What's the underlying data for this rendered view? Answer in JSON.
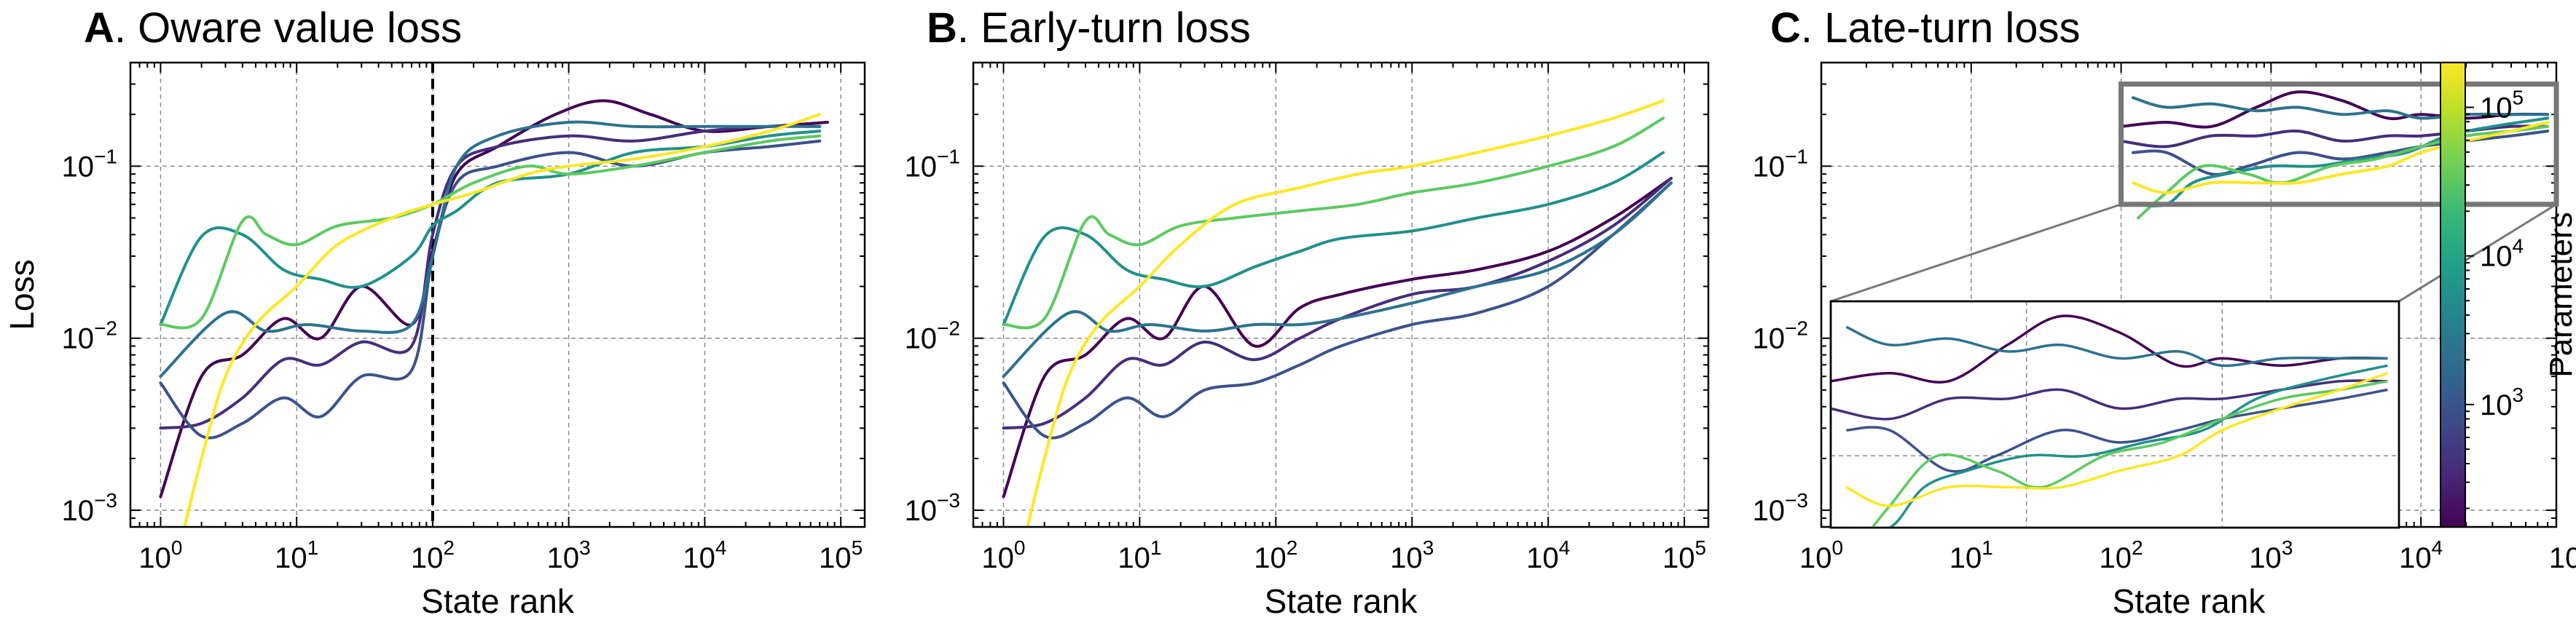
{
  "figure": {
    "colorbar": {
      "label": "Parameters",
      "colormap": [
        "#440154",
        "#482878",
        "#3e4989",
        "#31688e",
        "#26828e",
        "#1f9e89",
        "#35b779",
        "#6ece58",
        "#b5de2b",
        "#fde725"
      ],
      "range": [
        150,
        200000
      ],
      "ticks": [
        {
          "value": 1000,
          "base": "10",
          "exp": "3"
        },
        {
          "value": 10000,
          "base": "10",
          "exp": "4"
        },
        {
          "value": 100000,
          "base": "10",
          "exp": "5"
        }
      ]
    }
  },
  "chart_data": [
    {
      "type": "line",
      "panel_letter": "A",
      "title_rest": ". Oware value loss",
      "xlabel": "State rank",
      "ylabel": "Loss",
      "xscale": "log",
      "yscale": "log",
      "xlim": [
        0.6,
        150000
      ],
      "ylim": [
        0.0008,
        0.4
      ],
      "xticks": [
        {
          "base": "10",
          "exp": "0"
        },
        {
          "base": "10",
          "exp": "1"
        },
        {
          "base": "10",
          "exp": "2"
        },
        {
          "base": "10",
          "exp": "3"
        },
        {
          "base": "10",
          "exp": "4"
        },
        {
          "base": "10",
          "exp": "5"
        }
      ],
      "yticks": [
        {
          "base": "10",
          "exp": "−3"
        },
        {
          "base": "10",
          "exp": "−2"
        },
        {
          "base": "10",
          "exp": "−1"
        }
      ],
      "grid": true,
      "vline": {
        "x": 100,
        "style": "dashed"
      },
      "series": [
        {
          "color": "#440154",
          "x": [
            1,
            2,
            4,
            8,
            15,
            30,
            70,
            100,
            150,
            300,
            800,
            1800,
            4000,
            10000,
            30000,
            80000
          ],
          "y": [
            0.0012,
            0.006,
            0.008,
            0.013,
            0.01,
            0.02,
            0.012,
            0.032,
            0.09,
            0.13,
            0.2,
            0.24,
            0.2,
            0.16,
            0.17,
            0.18
          ]
        },
        {
          "color": "#472d7b",
          "x": [
            1,
            2,
            4,
            8,
            15,
            30,
            70,
            100,
            150,
            300,
            1000,
            3000,
            10000,
            30000,
            70000
          ],
          "y": [
            0.003,
            0.0032,
            0.0045,
            0.0075,
            0.007,
            0.0095,
            0.009,
            0.04,
            0.1,
            0.13,
            0.15,
            0.14,
            0.16,
            0.17,
            0.17
          ]
        },
        {
          "color": "#3b528b",
          "x": [
            1,
            2,
            4,
            8,
            15,
            30,
            70,
            100,
            150,
            300,
            1000,
            3000,
            10000,
            30000,
            70000
          ],
          "y": [
            0.0055,
            0.0027,
            0.0032,
            0.0045,
            0.0035,
            0.006,
            0.0065,
            0.03,
            0.08,
            0.1,
            0.12,
            0.1,
            0.12,
            0.13,
            0.14
          ]
        },
        {
          "color": "#2c728e",
          "x": [
            1,
            3,
            6,
            12,
            30,
            70,
            100,
            150,
            300,
            1000,
            3000,
            10000,
            30000,
            70000
          ],
          "y": [
            0.006,
            0.014,
            0.011,
            0.012,
            0.011,
            0.012,
            0.03,
            0.1,
            0.15,
            0.18,
            0.17,
            0.17,
            0.17,
            0.17
          ]
        },
        {
          "color": "#21918c",
          "x": [
            1,
            2,
            4,
            8,
            15,
            30,
            70,
            100,
            150,
            300,
            1000,
            3000,
            10000,
            30000,
            70000
          ],
          "y": [
            0.012,
            0.039,
            0.04,
            0.025,
            0.022,
            0.02,
            0.03,
            0.045,
            0.055,
            0.08,
            0.09,
            0.12,
            0.13,
            0.15,
            0.16
          ]
        },
        {
          "color": "#5ec962",
          "x": [
            1,
            2,
            4,
            6,
            10,
            20,
            50,
            100,
            200,
            500,
            1000,
            3000,
            10000,
            30000,
            70000
          ],
          "y": [
            0.012,
            0.013,
            0.048,
            0.04,
            0.035,
            0.045,
            0.05,
            0.06,
            0.08,
            0.1,
            0.09,
            0.1,
            0.12,
            0.14,
            0.15
          ]
        },
        {
          "color": "#fde725",
          "x": [
            1.5,
            2,
            3,
            5,
            10,
            20,
            50,
            100,
            200,
            500,
            1000,
            3000,
            10000,
            30000,
            70000
          ],
          "y": [
            0.0008,
            0.002,
            0.006,
            0.012,
            0.02,
            0.035,
            0.05,
            0.06,
            0.07,
            0.09,
            0.1,
            0.11,
            0.13,
            0.16,
            0.2
          ]
        }
      ]
    },
    {
      "type": "line",
      "panel_letter": "B",
      "title_rest": ". Early-turn loss",
      "xlabel": "State rank",
      "ylabel": "",
      "xscale": "log",
      "yscale": "log",
      "xlim": [
        0.6,
        150000
      ],
      "ylim": [
        0.0008,
        0.4
      ],
      "xticks": [
        {
          "base": "10",
          "exp": "0"
        },
        {
          "base": "10",
          "exp": "1"
        },
        {
          "base": "10",
          "exp": "2"
        },
        {
          "base": "10",
          "exp": "3"
        },
        {
          "base": "10",
          "exp": "4"
        },
        {
          "base": "10",
          "exp": "5"
        }
      ],
      "yticks": [
        {
          "base": "10",
          "exp": "−3"
        },
        {
          "base": "10",
          "exp": "−2"
        },
        {
          "base": "10",
          "exp": "−1"
        }
      ],
      "grid": true,
      "series": [
        {
          "color": "#440154",
          "x": [
            1,
            2,
            4,
            8,
            15,
            30,
            70,
            150,
            300,
            1000,
            3000,
            10000,
            30000,
            80000
          ],
          "y": [
            0.0012,
            0.006,
            0.008,
            0.013,
            0.01,
            0.02,
            0.009,
            0.015,
            0.018,
            0.022,
            0.025,
            0.032,
            0.05,
            0.085
          ]
        },
        {
          "color": "#472d7b",
          "x": [
            1,
            2,
            4,
            8,
            15,
            30,
            70,
            150,
            300,
            1000,
            3000,
            10000,
            30000,
            80000
          ],
          "y": [
            0.003,
            0.0032,
            0.0045,
            0.0075,
            0.007,
            0.0095,
            0.0075,
            0.01,
            0.013,
            0.018,
            0.02,
            0.028,
            0.045,
            0.085
          ]
        },
        {
          "color": "#3b528b",
          "x": [
            1,
            2,
            4,
            8,
            15,
            30,
            70,
            150,
            300,
            1000,
            3000,
            10000,
            30000,
            80000
          ],
          "y": [
            0.0055,
            0.0027,
            0.0032,
            0.0045,
            0.0035,
            0.005,
            0.0055,
            0.007,
            0.009,
            0.012,
            0.014,
            0.02,
            0.04,
            0.08
          ]
        },
        {
          "color": "#2c728e",
          "x": [
            1,
            3,
            6,
            12,
            30,
            70,
            150,
            300,
            1000,
            3000,
            10000,
            30000,
            80000
          ],
          "y": [
            0.006,
            0.014,
            0.011,
            0.012,
            0.011,
            0.012,
            0.012,
            0.013,
            0.016,
            0.02,
            0.025,
            0.04,
            0.08
          ]
        },
        {
          "color": "#21918c",
          "x": [
            1,
            2,
            4,
            8,
            15,
            30,
            70,
            150,
            300,
            1000,
            3000,
            10000,
            30000,
            70000
          ],
          "y": [
            0.012,
            0.039,
            0.04,
            0.025,
            0.022,
            0.02,
            0.026,
            0.032,
            0.038,
            0.042,
            0.05,
            0.06,
            0.08,
            0.12
          ]
        },
        {
          "color": "#5ec962",
          "x": [
            1,
            2,
            4,
            6,
            10,
            20,
            50,
            150,
            400,
            1000,
            3000,
            10000,
            30000,
            70000
          ],
          "y": [
            0.012,
            0.013,
            0.048,
            0.04,
            0.035,
            0.045,
            0.05,
            0.055,
            0.06,
            0.07,
            0.08,
            0.1,
            0.13,
            0.19
          ]
        },
        {
          "color": "#fde725",
          "x": [
            1.5,
            2,
            3,
            5,
            10,
            20,
            50,
            150,
            400,
            1000,
            3000,
            10000,
            30000,
            70000
          ],
          "y": [
            0.0008,
            0.002,
            0.006,
            0.012,
            0.02,
            0.035,
            0.06,
            0.075,
            0.09,
            0.1,
            0.12,
            0.15,
            0.19,
            0.24
          ]
        }
      ]
    },
    {
      "type": "line",
      "panel_letter": "C",
      "title_rest": ". Late-turn loss",
      "xlabel": "State rank",
      "ylabel": "",
      "xscale": "log",
      "yscale": "log",
      "xlim": [
        1,
        80000
      ],
      "ylim": [
        0.0008,
        0.4
      ],
      "xticks": [
        {
          "base": "10",
          "exp": "0"
        },
        {
          "base": "10",
          "exp": "1"
        },
        {
          "base": "10",
          "exp": "2"
        },
        {
          "base": "10",
          "exp": "3"
        },
        {
          "base": "10",
          "exp": "4"
        },
        {
          "base": "10",
          "exp": "5"
        }
      ],
      "yticks": [
        {
          "base": "10",
          "exp": "−3"
        },
        {
          "base": "10",
          "exp": "−2"
        },
        {
          "base": "10",
          "exp": "−1"
        }
      ],
      "grid": true,
      "inset_zoom": {
        "xlim": [
          100,
          80000
        ],
        "ylim": [
          0.06,
          0.3
        ]
      },
      "series": [
        {
          "color": "#440154",
          "x": [
            100,
            200,
            400,
            800,
            1500,
            3000,
            6000,
            10000,
            20000,
            40000,
            70000
          ],
          "y": [
            0.17,
            0.18,
            0.17,
            0.22,
            0.27,
            0.24,
            0.19,
            0.2,
            0.19,
            0.2,
            0.2
          ]
        },
        {
          "color": "#472d7b",
          "x": [
            100,
            200,
            400,
            800,
            1500,
            3000,
            6000,
            10000,
            20000,
            40000,
            70000
          ],
          "y": [
            0.14,
            0.13,
            0.15,
            0.15,
            0.16,
            0.14,
            0.15,
            0.15,
            0.16,
            0.17,
            0.17
          ]
        },
        {
          "color": "#3b528b",
          "x": [
            120,
            200,
            400,
            700,
            1500,
            3000,
            6000,
            10000,
            20000,
            40000,
            70000
          ],
          "y": [
            0.12,
            0.12,
            0.09,
            0.1,
            0.12,
            0.11,
            0.12,
            0.13,
            0.14,
            0.15,
            0.16
          ]
        },
        {
          "color": "#2c728e",
          "x": [
            120,
            200,
            400,
            800,
            1500,
            3000,
            6000,
            10000,
            20000,
            40000,
            70000
          ],
          "y": [
            0.25,
            0.22,
            0.23,
            0.21,
            0.22,
            0.2,
            0.21,
            0.19,
            0.2,
            0.2,
            0.2
          ]
        },
        {
          "color": "#21918c",
          "x": [
            120,
            200,
            300,
            500,
            1000,
            2000,
            4000,
            8000,
            15000,
            30000,
            70000
          ],
          "y": [
            0.06,
            0.06,
            0.08,
            0.09,
            0.1,
            0.1,
            0.11,
            0.12,
            0.15,
            0.17,
            0.19
          ]
        },
        {
          "color": "#5ec962",
          "x": [
            130,
            200,
            350,
            700,
            1200,
            2500,
            5000,
            10000,
            20000,
            40000,
            70000
          ],
          "y": [
            0.05,
            0.07,
            0.1,
            0.09,
            0.08,
            0.1,
            0.11,
            0.13,
            0.15,
            0.16,
            0.17
          ]
        },
        {
          "color": "#fde725",
          "x": [
            120,
            200,
            400,
            800,
            1500,
            3000,
            6000,
            10000,
            20000,
            40000,
            70000
          ],
          "y": [
            0.08,
            0.07,
            0.08,
            0.08,
            0.08,
            0.09,
            0.1,
            0.12,
            0.14,
            0.16,
            0.18
          ]
        }
      ]
    }
  ]
}
